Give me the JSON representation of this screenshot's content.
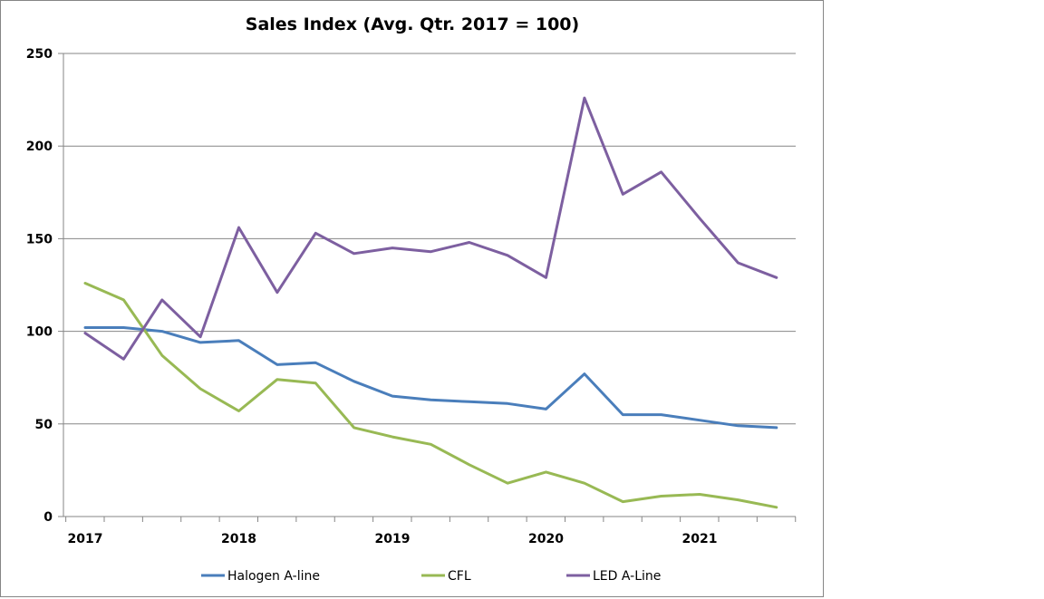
{
  "chart_data": {
    "type": "line",
    "title": "Sales Index (Avg. Qtr. 2017 = 100)",
    "xlabel": "",
    "ylabel": "",
    "ylim": [
      0,
      250
    ],
    "yticks": [
      "0",
      "50",
      "100",
      "150",
      "200",
      "250"
    ],
    "x_tick_labels": [
      "2017",
      "2018",
      "2019",
      "2020",
      "2021"
    ],
    "x": [
      "2017 Q1",
      "2017 Q2",
      "2017 Q3",
      "2017 Q4",
      "2018 Q1",
      "2018 Q2",
      "2018 Q3",
      "2018 Q4",
      "2019 Q1",
      "2019 Q2",
      "2019 Q3",
      "2019 Q4",
      "2020 Q1",
      "2020 Q2",
      "2020 Q3",
      "2020 Q4",
      "2021 Q1",
      "2021 Q2",
      "2021 Q3"
    ],
    "grid": "horizontal",
    "legend_position": "bottom",
    "series": [
      {
        "name": "Halogen A-line",
        "color": "#4a7ebb",
        "values": [
          102,
          102,
          100,
          94,
          95,
          82,
          83,
          73,
          65,
          63,
          62,
          61,
          58,
          77,
          55,
          55,
          52,
          49,
          48
        ]
      },
      {
        "name": "CFL",
        "color": "#98b954",
        "values": [
          126,
          117,
          87,
          69,
          57,
          74,
          72,
          48,
          43,
          39,
          28,
          18,
          24,
          18,
          8,
          11,
          12,
          9,
          5
        ]
      },
      {
        "name": "LED A-Line",
        "color": "#7d5fa0",
        "values": [
          99,
          85,
          117,
          97,
          156,
          121,
          153,
          142,
          145,
          143,
          148,
          141,
          129,
          226,
          174,
          186,
          161,
          137,
          129
        ]
      }
    ]
  }
}
